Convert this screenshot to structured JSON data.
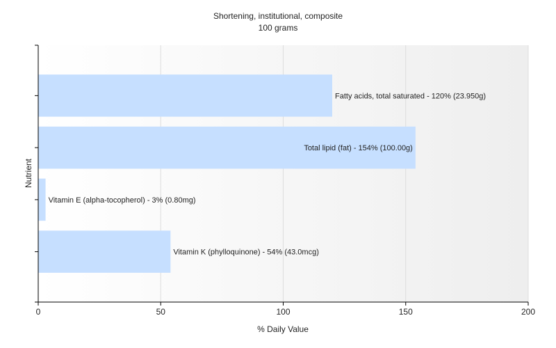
{
  "chart_data": {
    "type": "bar",
    "orientation": "horizontal",
    "title": "Shortening, institutional, composite",
    "subtitle": "100 grams",
    "xlabel": "% Daily Value",
    "ylabel": "Nutrient",
    "xlim": [
      0,
      200
    ],
    "xticks": [
      0,
      50,
      100,
      150,
      200
    ],
    "grid": true,
    "categories": [
      "Fatty acids, total saturated",
      "Total lipid (fat)",
      "Vitamin E (alpha-tocopherol)",
      "Vitamin K (phylloquinone)"
    ],
    "values": [
      120,
      154,
      3,
      54
    ],
    "data_labels": [
      "Fatty acids, total saturated - 120% (23.950g)",
      "Total lipid (fat) - 154% (100.00g)",
      "Vitamin E (alpha-tocopherol) - 3% (0.80mg)",
      "Vitamin K (phylloquinone) - 54% (43.0mcg)"
    ],
    "bar_color": "#c6dfff",
    "background_gradient": [
      "#ffffff",
      "#eeeeee"
    ],
    "grid_color": "#dddddd",
    "axis_color": "#000000"
  }
}
